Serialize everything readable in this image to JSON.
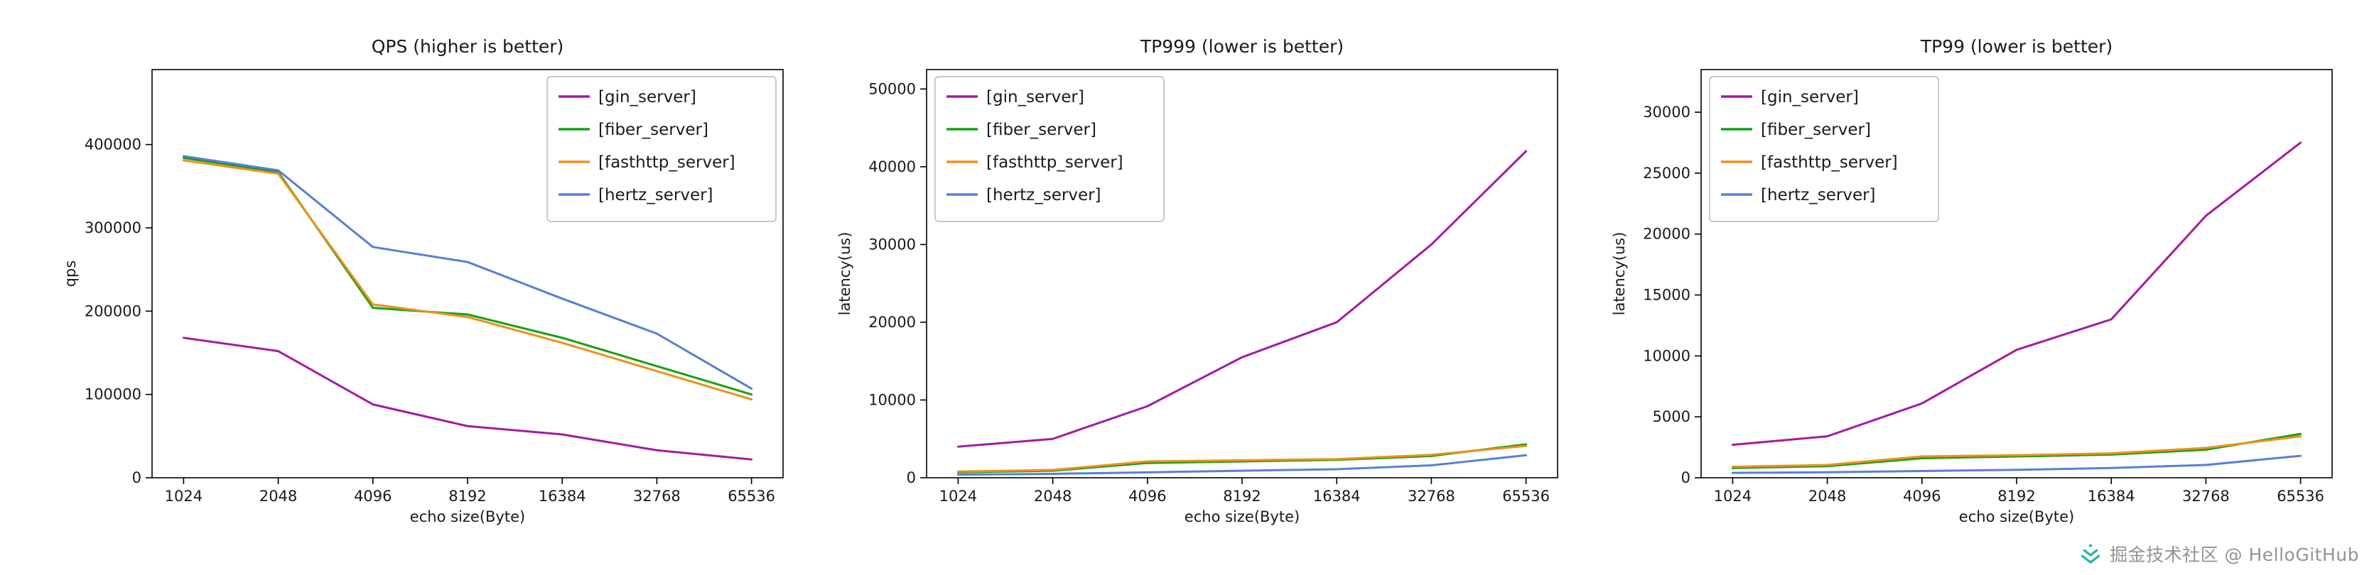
{
  "watermark": {
    "text": "掘金技术社区 @ HelloGitHub",
    "icon": "juejin-logo",
    "icon_color": "#2fb3a6",
    "text_color": "#8f9399"
  },
  "colors": {
    "gin_server": "#a51aa2",
    "fiber_server": "#17a017",
    "fasthttp_server": "#ef8f1b",
    "hertz_server": "#567fd9"
  },
  "chart_data": [
    {
      "type": "line",
      "title": "QPS (higher is better)",
      "xlabel": "echo size(Byte)",
      "ylabel": "qps",
      "categories": [
        "1024",
        "2048",
        "4096",
        "8192",
        "16384",
        "32768",
        "65536"
      ],
      "ylim": [
        0,
        490000
      ],
      "yticks": [
        0,
        100000,
        200000,
        300000,
        400000
      ],
      "grid": false,
      "legend_position": "upper right",
      "series": [
        {
          "name": "[gin_server]",
          "color_key": "gin_server",
          "values": [
            168000,
            152000,
            88000,
            62000,
            52000,
            33000,
            22000
          ]
        },
        {
          "name": "[fiber_server]",
          "color_key": "fiber_server",
          "values": [
            384000,
            367000,
            204000,
            196000,
            168000,
            134000,
            100000
          ]
        },
        {
          "name": "[fasthttp_server]",
          "color_key": "fasthttp_server",
          "values": [
            381000,
            365000,
            208000,
            193000,
            162000,
            128000,
            94000
          ]
        },
        {
          "name": "[hertz_server]",
          "color_key": "hertz_server",
          "values": [
            386000,
            369000,
            277000,
            259000,
            215000,
            173000,
            107000
          ]
        }
      ]
    },
    {
      "type": "line",
      "title": "TP999 (lower is better)",
      "xlabel": "echo size(Byte)",
      "ylabel": "latency(us)",
      "categories": [
        "1024",
        "2048",
        "4096",
        "8192",
        "16384",
        "32768",
        "65536"
      ],
      "ylim": [
        0,
        52500
      ],
      "yticks": [
        0,
        10000,
        20000,
        30000,
        40000,
        50000
      ],
      "grid": false,
      "legend_position": "upper left",
      "series": [
        {
          "name": "[gin_server]",
          "color_key": "gin_server",
          "values": [
            4000,
            5000,
            9200,
            15500,
            20000,
            30000,
            42000
          ]
        },
        {
          "name": "[fiber_server]",
          "color_key": "fiber_server",
          "values": [
            700,
            900,
            1900,
            2100,
            2300,
            2800,
            4300
          ]
        },
        {
          "name": "[fasthttp_server]",
          "color_key": "fasthttp_server",
          "values": [
            800,
            1000,
            2100,
            2250,
            2400,
            2950,
            4100
          ]
        },
        {
          "name": "[hertz_server]",
          "color_key": "hertz_server",
          "values": [
            400,
            500,
            700,
            900,
            1100,
            1600,
            2900
          ]
        }
      ]
    },
    {
      "type": "line",
      "title": "TP99 (lower is better)",
      "xlabel": "echo size(Byte)",
      "ylabel": "latency(us)",
      "categories": [
        "1024",
        "2048",
        "4096",
        "8192",
        "16384",
        "32768",
        "65536"
      ],
      "ylim": [
        0,
        33500
      ],
      "yticks": [
        0,
        5000,
        10000,
        15000,
        20000,
        25000,
        30000
      ],
      "grid": false,
      "legend_position": "upper left",
      "series": [
        {
          "name": "[gin_server]",
          "color_key": "gin_server",
          "values": [
            2700,
            3400,
            6100,
            10500,
            13000,
            21500,
            27500
          ]
        },
        {
          "name": "[fiber_server]",
          "color_key": "fiber_server",
          "values": [
            800,
            950,
            1600,
            1750,
            1900,
            2300,
            3600
          ]
        },
        {
          "name": "[fasthttp_server]",
          "color_key": "fasthttp_server",
          "values": [
            900,
            1050,
            1750,
            1850,
            2000,
            2450,
            3400
          ]
        },
        {
          "name": "[hertz_server]",
          "color_key": "hertz_server",
          "values": [
            400,
            450,
            550,
            650,
            800,
            1050,
            1800
          ]
        }
      ]
    }
  ]
}
